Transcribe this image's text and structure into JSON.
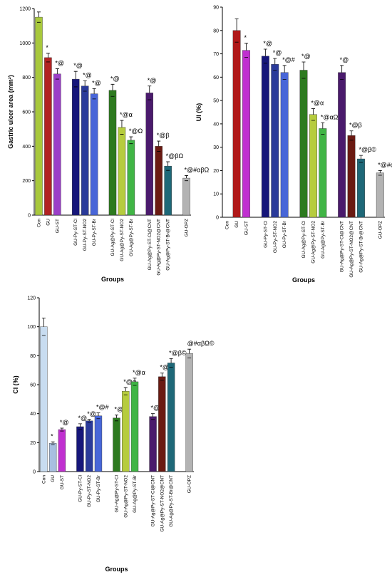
{
  "chart_data": [
    {
      "type": "bar",
      "y_label": "Gastric ulcer area (mm²)",
      "x_label": "Groups",
      "categories": [
        "Con",
        "GU",
        "GU-ST",
        null,
        "GU-Py-ST-Cl",
        "GU-Py-ST-NO2",
        "GU-Py-ST-Br",
        null,
        "GU-Ag@Py-ST-Cl",
        "GU-Ag@Py-ST-NO2",
        "GU-Ag@Py-ST-Br",
        null,
        "GU-Ag@Py-ST-Cl@CNT",
        "GU-Ag@Py-ST-NO2@CNT",
        "GU-Ag@Py-ST-Br@CNT",
        null,
        "GU-OPZ"
      ],
      "values": [
        1150,
        915,
        820,
        null,
        790,
        750,
        705,
        null,
        725,
        510,
        435,
        null,
        710,
        400,
        285,
        null,
        215
      ],
      "errors": [
        30,
        25,
        30,
        null,
        45,
        30,
        30,
        null,
        35,
        40,
        20,
        null,
        40,
        30,
        25,
        null,
        15
      ],
      "annotations": [
        null,
        "*",
        "*@",
        null,
        "*@",
        "*@",
        "*@",
        null,
        "*@",
        "*@α",
        "*@Ω",
        null,
        "*@",
        "*@β",
        "*@βΩ",
        null,
        "*@#αβΩ"
      ],
      "colors": [
        "#a8c83c",
        "#b22222",
        "#9b3fc8",
        null,
        "#16167a",
        "#2a3a9a",
        "#4866d8",
        null,
        "#2d7a1f",
        "#b6cc3e",
        "#40b545",
        null,
        "#4a1a6c",
        "#6a1a12",
        "#1e6878",
        null,
        "#b3b3b3"
      ],
      "ylim": [
        0,
        1200
      ],
      "yticks": [
        0,
        200,
        400,
        600,
        800,
        1000,
        1200
      ]
    },
    {
      "type": "bar",
      "y_label": "UI (%)",
      "x_label": "Groups",
      "categories": [
        "Con",
        "GU",
        "GU-ST",
        null,
        "GU-Py-ST-Cl",
        "GU-Py-ST-NO2",
        "GU-Py-ST-Br",
        null,
        "GU-Ag@Py-ST-Cl",
        "GU-Ag@Py-ST-NO2",
        "GU-Ag@Py-ST-Br",
        null,
        "GU-Ag@Py-ST-Cl@CNT",
        "GU-Ag@Py-ST-NO2@CNT",
        "GU-Ag@Py-ST-Br@CNT",
        null,
        "GU-OPZ"
      ],
      "values": [
        0,
        80,
        71.5,
        null,
        69,
        65.5,
        62,
        null,
        63,
        44,
        38,
        null,
        62,
        35,
        25,
        null,
        19
      ],
      "errors": [
        0,
        5,
        3,
        null,
        3,
        2.5,
        3,
        null,
        3.5,
        2.5,
        2.5,
        null,
        3,
        2,
        1.5,
        null,
        1
      ],
      "annotations": [
        null,
        null,
        "*",
        null,
        "*@",
        "*@",
        "*@#",
        null,
        "*@",
        "*@α",
        "*@αΩ",
        null,
        "*@",
        "*@β",
        "*@β©",
        null,
        "*@#αβΩ©"
      ],
      "colors": [
        "#a8c83c",
        "#b01818",
        "#c030d0",
        null,
        "#16167a",
        "#2a3a9a",
        "#4866d8",
        null,
        "#2d7a1f",
        "#b6cc3e",
        "#40b545",
        null,
        "#4a1a6c",
        "#6a1a12",
        "#1e6878",
        null,
        "#b3b3b3"
      ],
      "ylim": [
        0,
        90
      ],
      "yticks": [
        0,
        10,
        20,
        30,
        40,
        50,
        60,
        70,
        80,
        90
      ]
    },
    {
      "type": "bar",
      "y_label": "CI (%)",
      "x_label": "Groups",
      "categories": [
        "Con",
        "GU",
        "GU-ST",
        null,
        "GU-Py-ST-Cl",
        "GU-Py-ST-NO2",
        "GU-Py-ST-Br",
        null,
        "GU-Ag@Py-ST-Cl",
        "GU-Ag@Py-ST-NO2",
        "GU-Ag@Py-ST-Br",
        null,
        "GU-Ag@Py-ST-Cl@CNT",
        "GU-Ag@Py-ST-NO2@CNT",
        "GU-Ag@Py-ST-Br@CNT",
        null,
        "GU-OPZ"
      ],
      "values": [
        100,
        19.5,
        29,
        null,
        31,
        35,
        38.5,
        null,
        37,
        55.5,
        62,
        null,
        38,
        65.5,
        75,
        null,
        81.5
      ],
      "errors": [
        6,
        1,
        1,
        null,
        2,
        1,
        2,
        null,
        2,
        2.5,
        2.5,
        null,
        2,
        2.5,
        3,
        null,
        3
      ],
      "annotations": [
        null,
        "*",
        "*@",
        null,
        "*@",
        "*@",
        "*@#",
        null,
        "*@",
        "*@α",
        "*@α",
        null,
        "*@",
        "*@β",
        "*@β©",
        null,
        "@#αβΩ©"
      ],
      "colors": [
        "#c8dcf0",
        "#a8bfe0",
        "#c030d0",
        null,
        "#16167a",
        "#2a3a9a",
        "#4866d8",
        null,
        "#2d7a1f",
        "#b6cc3e",
        "#40b545",
        null,
        "#4a1a6c",
        "#6a1a12",
        "#1e6878",
        null,
        "#b3b3b3"
      ],
      "ylim": [
        0,
        120
      ],
      "yticks": [
        0,
        20,
        40,
        60,
        80,
        100,
        120
      ]
    }
  ]
}
